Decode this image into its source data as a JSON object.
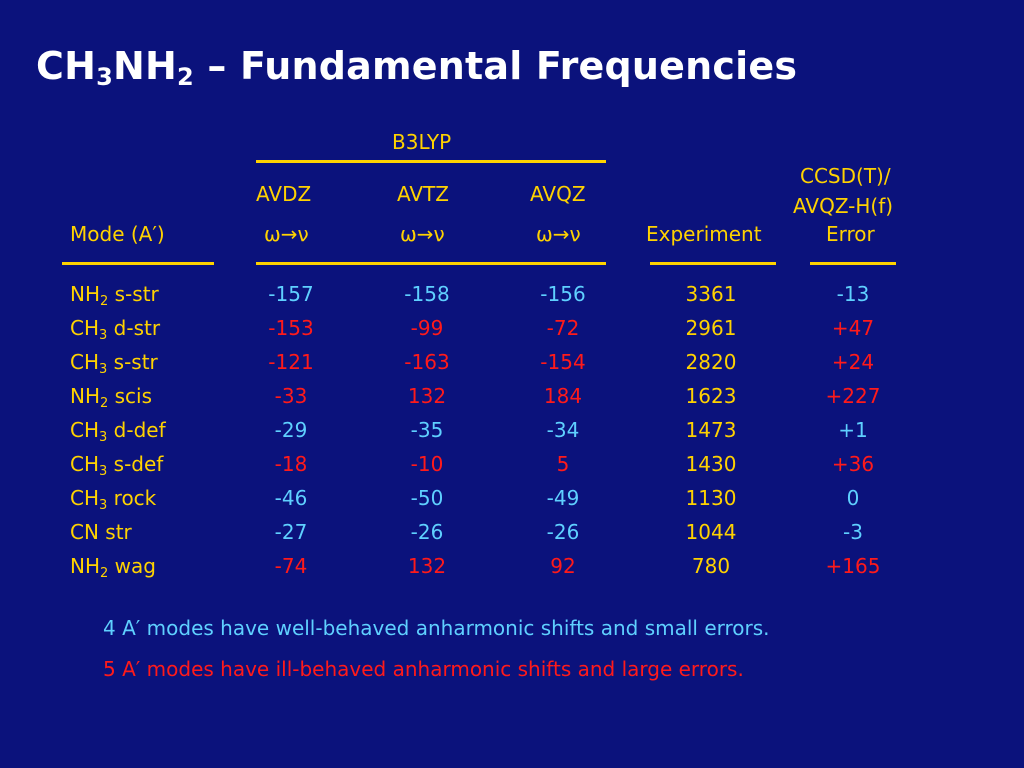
{
  "title": {
    "formula_parts": [
      "CH",
      "3",
      "NH",
      "2"
    ],
    "rest": " – Fundamental Frequencies"
  },
  "colors": {
    "background": "#0b127c",
    "yellow": "#ffd200",
    "blue": "#5fd0ff",
    "red": "#ff1a1a",
    "white": "#ffffff"
  },
  "header": {
    "group": "B3LYP",
    "basis": [
      "AVDZ",
      "AVTZ",
      "AVQZ"
    ],
    "omega_nu": "ω→ν",
    "mode": "Mode (A′)",
    "experiment": "Experiment",
    "error_line1": "CCSD(T)/",
    "error_line2": "AVQZ-H(f)",
    "error_line3": "Error"
  },
  "rows": [
    {
      "mode": [
        "NH",
        "2",
        " s-str"
      ],
      "avdz": "-157",
      "avtz": "-158",
      "avqz": "-156",
      "exp": "3361",
      "err": "-13",
      "colors": [
        "blue",
        "blue",
        "blue",
        "yellow",
        "blue"
      ]
    },
    {
      "mode": [
        "CH",
        "3",
        " d-str"
      ],
      "avdz": "-153",
      "avtz": "-99",
      "avqz": "-72",
      "exp": "2961",
      "err": "+47",
      "colors": [
        "red",
        "red",
        "red",
        "yellow",
        "red"
      ]
    },
    {
      "mode": [
        "CH",
        "3",
        " s-str"
      ],
      "avdz": "-121",
      "avtz": "-163",
      "avqz": "-154",
      "exp": "2820",
      "err": "+24",
      "colors": [
        "red",
        "red",
        "red",
        "yellow",
        "red"
      ]
    },
    {
      "mode": [
        "NH",
        "2",
        " scis"
      ],
      "avdz": "-33",
      "avtz": "132",
      "avqz": "184",
      "exp": "1623",
      "err": "+227",
      "colors": [
        "red",
        "red",
        "red",
        "yellow",
        "red"
      ]
    },
    {
      "mode": [
        "CH",
        "3",
        " d-def"
      ],
      "avdz": "-29",
      "avtz": "-35",
      "avqz": "-34",
      "exp": "1473",
      "err": "+1",
      "colors": [
        "blue",
        "blue",
        "blue",
        "yellow",
        "blue"
      ]
    },
    {
      "mode": [
        "CH",
        "3",
        " s-def"
      ],
      "avdz": "-18",
      "avtz": "-10",
      "avqz": "5",
      "exp": "1430",
      "err": "+36",
      "colors": [
        "red",
        "red",
        "red",
        "yellow",
        "red"
      ]
    },
    {
      "mode": [
        "CH",
        "3",
        " rock"
      ],
      "avdz": "-46",
      "avtz": "-50",
      "avqz": "-49",
      "exp": "1130",
      "err": "0",
      "colors": [
        "blue",
        "blue",
        "blue",
        "yellow",
        "blue"
      ]
    },
    {
      "mode": [
        "CN str",
        "",
        ""
      ],
      "avdz": "-27",
      "avtz": "-26",
      "avqz": "-26",
      "exp": "1044",
      "err": "-3",
      "colors": [
        "blue",
        "blue",
        "blue",
        "yellow",
        "blue"
      ]
    },
    {
      "mode": [
        "NH",
        "2",
        " wag"
      ],
      "avdz": "-74",
      "avtz": "132",
      "avqz": "92",
      "exp": "780",
      "err": "+165",
      "colors": [
        "red",
        "red",
        "red",
        "yellow",
        "red"
      ]
    }
  ],
  "notes": {
    "good": "4 A′ modes have well-behaved anharmonic shifts and small errors.",
    "bad": "5 A′ modes have ill-behaved anharmonic shifts and large errors."
  }
}
